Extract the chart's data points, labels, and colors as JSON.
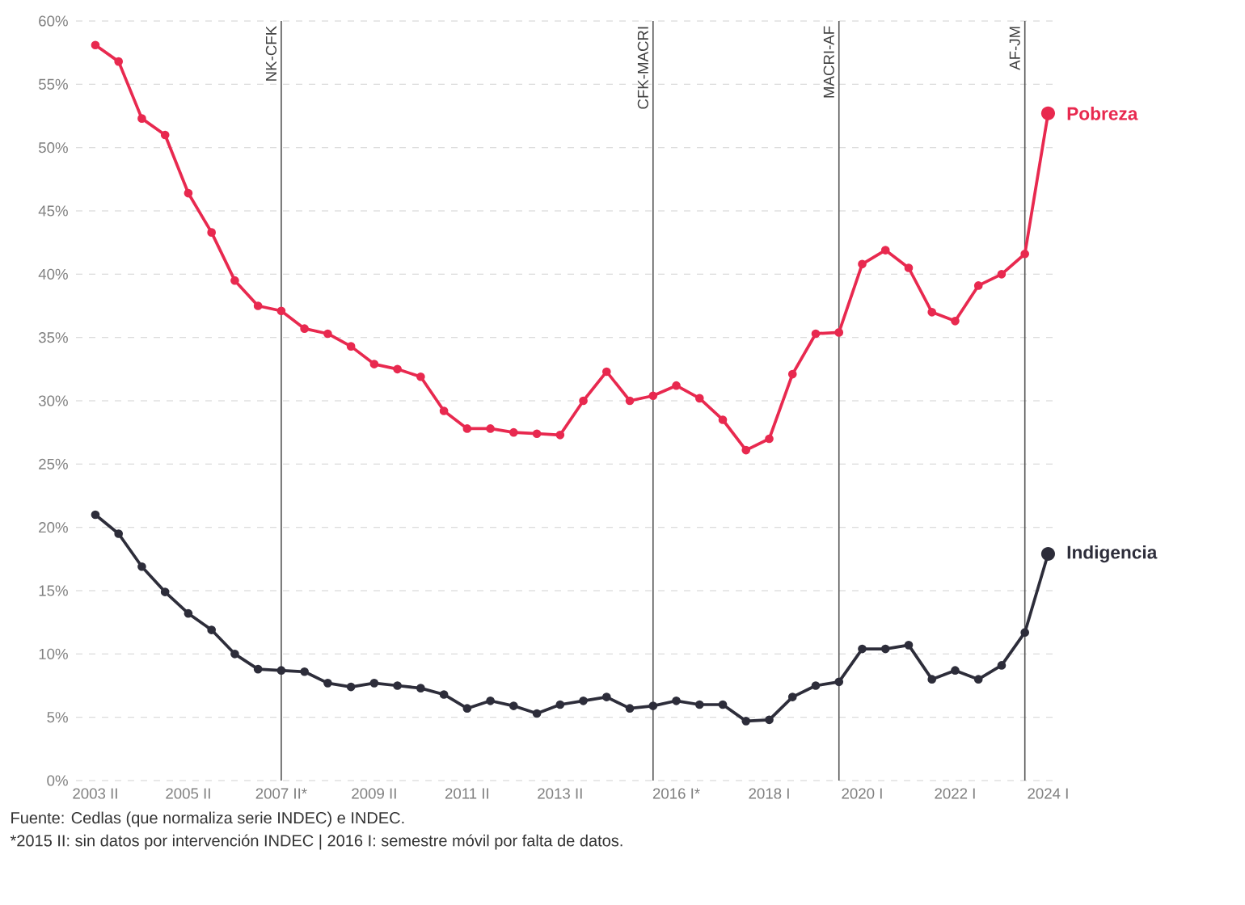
{
  "chart_data": {
    "type": "line",
    "x": [
      "2003-07",
      "2004-01",
      "2004-07",
      "2005-01",
      "2005-07",
      "2006-01",
      "2006-07",
      "2007-01",
      "2007-07",
      "2008-01",
      "2008-07",
      "2009-01",
      "2009-07",
      "2010-01",
      "2010-07",
      "2011-01",
      "2011-07",
      "2012-01",
      "2012-07",
      "2013-01",
      "2013-07",
      "2014-01",
      "2014-07",
      "2015-01",
      "2015-07",
      "2016-01",
      "2016-07",
      "2017-01",
      "2017-07",
      "2018-01",
      "2018-07",
      "2019-01",
      "2019-07",
      "2020-01",
      "2020-07",
      "2021-01",
      "2021-07",
      "2022-01",
      "2022-07",
      "2023-01",
      "2023-07",
      "2024-01"
    ],
    "series": [
      {
        "name": "Pobreza",
        "color": "#e8294f",
        "values": [
          58.1,
          56.8,
          52.3,
          51.0,
          46.4,
          43.3,
          39.5,
          37.5,
          37.1,
          35.7,
          35.3,
          34.3,
          32.9,
          32.5,
          31.9,
          29.2,
          27.8,
          27.8,
          27.5,
          27.4,
          27.3,
          30.0,
          32.3,
          30.0,
          30.4,
          31.2,
          30.2,
          28.5,
          26.1,
          27.0,
          32.1,
          35.3,
          35.4,
          40.8,
          41.9,
          40.5,
          37.0,
          36.3,
          39.1,
          40.0,
          41.6,
          52.7
        ]
      },
      {
        "name": "Indigencia",
        "color": "#2d2d3a",
        "values": [
          21.0,
          19.5,
          16.9,
          14.9,
          13.2,
          11.9,
          10.0,
          8.8,
          8.7,
          8.6,
          7.7,
          7.4,
          7.7,
          7.5,
          7.3,
          6.8,
          5.7,
          6.3,
          5.9,
          5.3,
          6.0,
          6.3,
          6.6,
          5.7,
          5.9,
          6.3,
          6.0,
          6.0,
          4.7,
          4.8,
          6.6,
          7.5,
          7.8,
          10.4,
          10.4,
          10.7,
          8.0,
          8.7,
          8.0,
          9.1,
          11.7,
          17.9
        ]
      }
    ],
    "xlim": [
      "2003-02",
      "2024-03"
    ],
    "xticks": [
      {
        "value": "2003-07",
        "label": "2003 II"
      },
      {
        "value": "2005-07",
        "label": "2005 II"
      },
      {
        "value": "2007-07",
        "label": "2007 II*"
      },
      {
        "value": "2009-07",
        "label": "2009 II"
      },
      {
        "value": "2011-07",
        "label": "2011 II"
      },
      {
        "value": "2013-07",
        "label": "2013 II"
      },
      {
        "value": "2016-01",
        "label": "2016 I*"
      },
      {
        "value": "2018-01",
        "label": "2018 I"
      },
      {
        "value": "2020-01",
        "label": "2020 I"
      },
      {
        "value": "2022-01",
        "label": "2022 I"
      },
      {
        "value": "2024-01",
        "label": "2024 I"
      }
    ],
    "ylim": [
      0,
      60
    ],
    "yticks": [
      {
        "value": 0,
        "label": "0%"
      },
      {
        "value": 5,
        "label": "5%"
      },
      {
        "value": 10,
        "label": "10%"
      },
      {
        "value": 15,
        "label": "15%"
      },
      {
        "value": 20,
        "label": "20%"
      },
      {
        "value": 25,
        "label": "25%"
      },
      {
        "value": 30,
        "label": "30%"
      },
      {
        "value": 35,
        "label": "35%"
      },
      {
        "value": 40,
        "label": "40%"
      },
      {
        "value": 45,
        "label": "45%"
      },
      {
        "value": 50,
        "label": "50%"
      },
      {
        "value": 55,
        "label": "55%"
      },
      {
        "value": 60,
        "label": "60%"
      }
    ],
    "ref_lines": [
      {
        "axis": "x",
        "value": "2007-07",
        "label": "NK-CFK",
        "color": "#555555"
      },
      {
        "axis": "x",
        "value": "2015-07",
        "label": "CFK-MACRI",
        "color": "#555555"
      },
      {
        "axis": "x",
        "value": "2019-07",
        "label": "MACRI-AF",
        "color": "#555555"
      },
      {
        "axis": "x",
        "value": "2023-07",
        "label": "AF-JM",
        "color": "#555555"
      }
    ],
    "grid": "y",
    "marker": "circle",
    "legend": false,
    "annotations": [
      "Fuente: Cedlas (que normaliza serie INDEC) e INDEC.",
      "*2015 II: sin datos por intervención INDEC | 2016 I: semestre móvil por falta de datos."
    ]
  }
}
